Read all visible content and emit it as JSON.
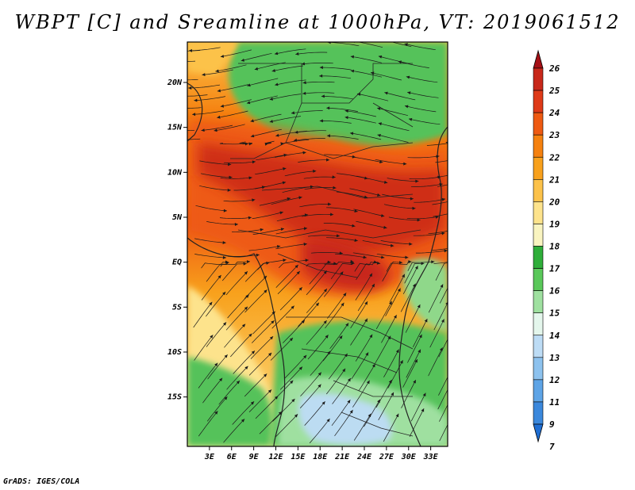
{
  "title": "WBPT [C] and Sreamline at 1000hPa, VT: 2019061512",
  "credit": "GrADS: IGES/COLA",
  "map": {
    "lon_range": [
      0,
      35.3
    ],
    "lat_range": [
      -20.5,
      24.5
    ],
    "x_ticks": [
      {
        "value": 3,
        "label": "3E"
      },
      {
        "value": 6,
        "label": "6E"
      },
      {
        "value": 9,
        "label": "9E"
      },
      {
        "value": 12,
        "label": "12E"
      },
      {
        "value": 15,
        "label": "15E"
      },
      {
        "value": 18,
        "label": "18E"
      },
      {
        "value": 21,
        "label": "21E"
      },
      {
        "value": 24,
        "label": "24E"
      },
      {
        "value": 27,
        "label": "27E"
      },
      {
        "value": 30,
        "label": "30E"
      },
      {
        "value": 33,
        "label": "33E"
      }
    ],
    "y_ticks": [
      {
        "value": 20,
        "label": "20N"
      },
      {
        "value": 15,
        "label": "15N"
      },
      {
        "value": 10,
        "label": "10N"
      },
      {
        "value": 5,
        "label": "5N"
      },
      {
        "value": 0,
        "label": "EQ"
      },
      {
        "value": -5,
        "label": "5S"
      },
      {
        "value": -10,
        "label": "10S"
      },
      {
        "value": -15,
        "label": "15S"
      }
    ]
  },
  "colorbar": {
    "levels": [
      "26",
      "25",
      "24",
      "23",
      "22",
      "21",
      "20",
      "19",
      "18",
      "17",
      "16",
      "15",
      "14",
      "13",
      "12",
      "11",
      "9",
      "7"
    ],
    "colors": [
      "#a50f15",
      "#c8281a",
      "#de3a18",
      "#ee5a12",
      "#f5810f",
      "#f8a11c",
      "#fcc24a",
      "#fde38c",
      "#f9f4c0",
      "#2fae3a",
      "#5ac85a",
      "#9fe0a0",
      "#e4f6ec",
      "#bddcf5",
      "#8dc2ee",
      "#5ea4e6",
      "#3b88dc",
      "#1f6ed3"
    ]
  },
  "colors": {
    "warm_core": "#cf2f18",
    "warm_edge": "#f08a2a",
    "green": "#55c25a",
    "light_blue": "#bcdcf2"
  }
}
